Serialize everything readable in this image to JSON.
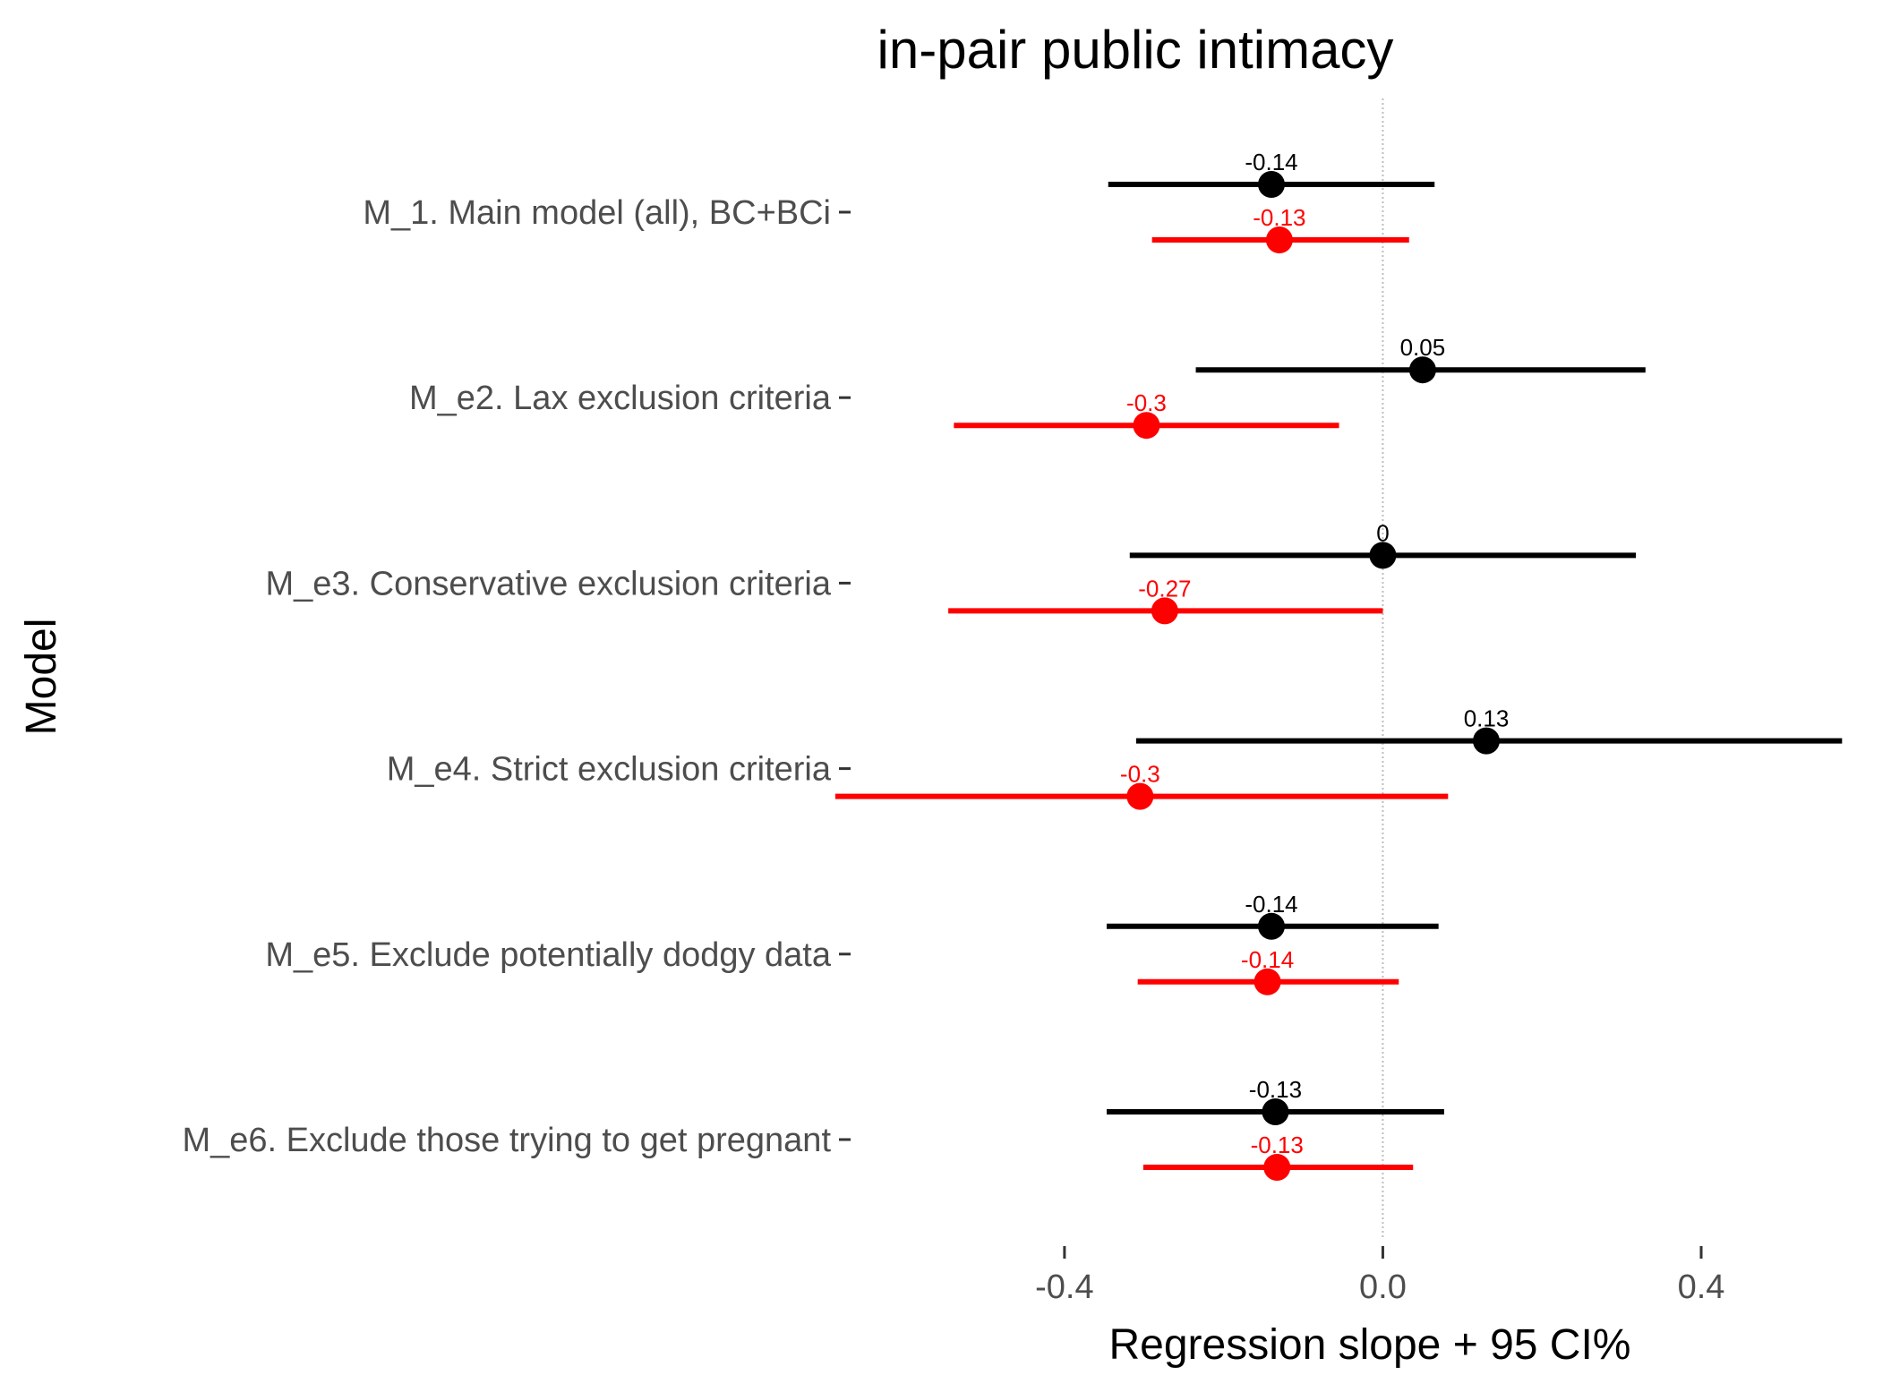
{
  "chart_data": {
    "type": "scatter",
    "title": "in-pair public intimacy",
    "xlabel": "Regression slope + 95 CI%",
    "ylabel": "Model",
    "xlim": [
      -0.68,
      0.58
    ],
    "xticks": [
      -0.4,
      0.0,
      0.4
    ],
    "xtick_labels": [
      "-0.4",
      "0.0",
      "0.4"
    ],
    "reference_line": 0,
    "grid": false,
    "categories": [
      "M_1. Main model (all), BC+BCi",
      "M_e2. Lax exclusion criteria",
      "M_e3. Conservative exclusion criteria",
      "M_e4. Strict exclusion criteria",
      "M_e5. Exclude potentially dodgy data",
      "M_e6. Exclude those trying to get pregnant"
    ],
    "series": [
      {
        "color": "#000000",
        "estimates": [
          -0.14,
          0.05,
          0.0,
          0.13,
          -0.14,
          -0.135
        ],
        "labels": [
          "-0.14",
          "0.05",
          "0",
          "0.13",
          "-0.14",
          "-0.13"
        ],
        "lower": [
          -0.345,
          -0.235,
          -0.318,
          -0.31,
          -0.347,
          -0.347
        ],
        "upper": [
          0.065,
          0.33,
          0.318,
          0.577,
          0.07,
          0.077
        ]
      },
      {
        "color": "#ff0000",
        "estimates": [
          -0.13,
          -0.297,
          -0.274,
          -0.305,
          -0.145,
          -0.133
        ],
        "labels": [
          "-0.13",
          "-0.3",
          "-0.27",
          "-0.3",
          "-0.14",
          "-0.13"
        ],
        "lower": [
          -0.29,
          -0.539,
          -0.546,
          -0.688,
          -0.308,
          -0.301
        ],
        "upper": [
          0.033,
          -0.055,
          0.0,
          0.082,
          0.02,
          0.038
        ]
      }
    ]
  }
}
